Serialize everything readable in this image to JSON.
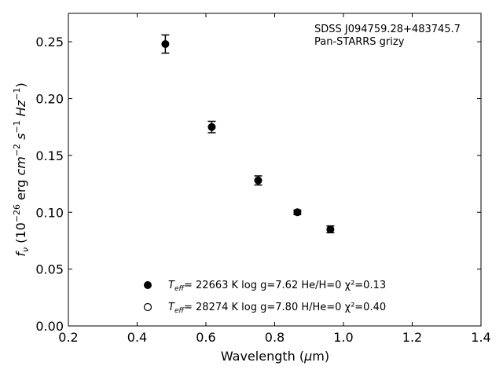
{
  "chart_data": {
    "type": "scatter",
    "xlabel": "Wavelength (μm)",
    "ylabel": "fν (10⁻²⁶ erg cm⁻² s⁻¹ Hz⁻¹)",
    "xlim": [
      0.2,
      1.4
    ],
    "ylim": [
      0.0,
      0.275
    ],
    "x_ticks": [
      "0.2",
      "0.4",
      "0.6",
      "0.8",
      "1.0",
      "1.2",
      "1.4"
    ],
    "y_ticks": [
      "0.00",
      "0.05",
      "0.10",
      "0.15",
      "0.20",
      "0.25"
    ],
    "grid": false,
    "annotation": {
      "line1": "SDSS J094759.28+483745.7",
      "line2": "Pan-STARRS grizy"
    },
    "legend": {
      "placement": "lower-center",
      "entries": [
        {
          "marker": "filled-circle",
          "teff_symbol": "T",
          "teff_sub": "eff",
          "text": "= 22663 K  log g=7.62  He/H=0  χ²=0.13"
        },
        {
          "marker": "open-circle",
          "teff_symbol": "T",
          "teff_sub": "eff",
          "text": "= 28274 K  log g=7.80  H/He=0  χ²=0.40"
        }
      ]
    },
    "series": [
      {
        "marker": "filled-circle",
        "x": [
          0.482,
          0.617,
          0.752,
          0.866,
          0.962
        ],
        "y": [
          0.248,
          0.175,
          0.128,
          0.1,
          0.085
        ],
        "yerr": [
          0.008,
          0.005,
          0.004,
          0.002,
          0.003
        ]
      }
    ],
    "colors": {
      "marker": "#000000",
      "axes": "#000000",
      "background": "#ffffff"
    }
  }
}
